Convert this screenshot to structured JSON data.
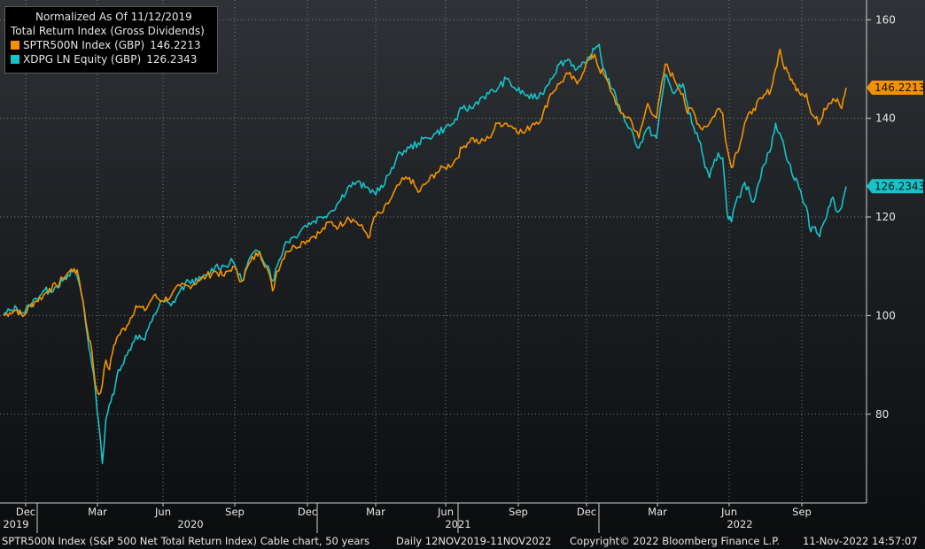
{
  "chart_data": {
    "type": "line",
    "title": "Normalized As Of 11/12/2019",
    "subtitle": "Total Return Index (Gross Dividends)",
    "ylim": [
      62,
      164
    ],
    "y_ticks": [
      80,
      100,
      120,
      140,
      160
    ],
    "grid": true,
    "legend_position": "top-left",
    "x_tick_labels": [
      "Dec",
      "Mar",
      "Jun",
      "Sep",
      "Dec",
      "Mar",
      "Jun",
      "Sep",
      "Dec",
      "Mar",
      "Jun",
      "Sep"
    ],
    "x_year_labels": [
      "2019",
      "2020",
      "2021",
      "2022"
    ],
    "date_range": "12NOV2019-11NOV2022",
    "series": [
      {
        "name": "SPTR500N Index (GBP)",
        "last_value": "146.2213",
        "color": "#f39200",
        "values": [
          [
            0,
            100
          ],
          [
            7,
            100.6
          ],
          [
            15,
            101.2
          ],
          [
            22,
            99.8
          ],
          [
            30,
            102
          ],
          [
            37,
            103
          ],
          [
            45,
            104
          ],
          [
            52,
            105.5
          ],
          [
            60,
            106
          ],
          [
            67,
            107.5
          ],
          [
            75,
            109
          ],
          [
            80,
            109.5
          ],
          [
            85,
            108
          ],
          [
            90,
            103
          ],
          [
            95,
            97
          ],
          [
            100,
            93
          ],
          [
            104,
            86
          ],
          [
            108,
            84
          ],
          [
            112,
            86
          ],
          [
            116,
            91
          ],
          [
            120,
            89
          ],
          [
            125,
            94
          ],
          [
            130,
            96
          ],
          [
            140,
            98
          ],
          [
            150,
            102
          ],
          [
            160,
            101
          ],
          [
            170,
            104
          ],
          [
            180,
            103
          ],
          [
            190,
            104
          ],
          [
            200,
            106
          ],
          [
            210,
            106
          ],
          [
            220,
            107
          ],
          [
            230,
            108
          ],
          [
            240,
            109
          ],
          [
            250,
            108
          ],
          [
            260,
            110
          ],
          [
            270,
            107
          ],
          [
            280,
            111
          ],
          [
            290,
            113
          ],
          [
            300,
            109
          ],
          [
            305,
            105
          ],
          [
            310,
            109
          ],
          [
            320,
            113
          ],
          [
            330,
            114
          ],
          [
            340,
            115
          ],
          [
            350,
            116
          ],
          [
            360,
            117
          ],
          [
            370,
            119
          ],
          [
            380,
            118
          ],
          [
            390,
            120
          ],
          [
            400,
            119
          ],
          [
            410,
            117
          ],
          [
            415,
            116
          ],
          [
            420,
            120
          ],
          [
            430,
            121
          ],
          [
            440,
            124
          ],
          [
            450,
            127
          ],
          [
            460,
            128
          ],
          [
            470,
            125
          ],
          [
            480,
            127
          ],
          [
            490,
            129
          ],
          [
            500,
            130
          ],
          [
            510,
            131
          ],
          [
            520,
            134
          ],
          [
            530,
            136
          ],
          [
            540,
            135
          ],
          [
            550,
            136
          ],
          [
            560,
            139
          ],
          [
            570,
            139
          ],
          [
            580,
            138
          ],
          [
            590,
            137
          ],
          [
            600,
            139
          ],
          [
            610,
            140
          ],
          [
            620,
            145
          ],
          [
            630,
            147
          ],
          [
            640,
            149
          ],
          [
            650,
            147
          ],
          [
            660,
            151
          ],
          [
            670,
            153
          ],
          [
            675,
            150
          ],
          [
            680,
            149
          ],
          [
            690,
            145
          ],
          [
            700,
            141
          ],
          [
            710,
            140
          ],
          [
            720,
            136
          ],
          [
            730,
            143
          ],
          [
            740,
            140
          ],
          [
            750,
            151
          ],
          [
            760,
            148
          ],
          [
            770,
            145
          ],
          [
            775,
            141
          ],
          [
            780,
            142
          ],
          [
            790,
            138
          ],
          [
            800,
            139
          ],
          [
            810,
            142
          ],
          [
            815,
            141
          ],
          [
            820,
            134
          ],
          [
            825,
            130
          ],
          [
            830,
            133
          ],
          [
            835,
            135
          ],
          [
            840,
            139
          ],
          [
            850,
            142
          ],
          [
            860,
            144
          ],
          [
            870,
            146
          ],
          [
            875,
            150
          ],
          [
            880,
            154
          ],
          [
            885,
            150
          ],
          [
            890,
            149
          ],
          [
            895,
            147
          ],
          [
            900,
            146
          ],
          [
            905,
            145
          ],
          [
            910,
            145
          ],
          [
            915,
            141
          ],
          [
            920,
            140
          ],
          [
            925,
            139
          ],
          [
            930,
            142
          ],
          [
            935,
            143
          ],
          [
            940,
            144
          ],
          [
            945,
            144
          ],
          [
            950,
            142
          ],
          [
            955,
            146.2
          ]
        ]
      },
      {
        "name": "XDPG LN Equity (GBP)",
        "last_value": "126.2343",
        "color": "#16c3c9",
        "values": [
          [
            0,
            100
          ],
          [
            7,
            101
          ],
          [
            15,
            101.5
          ],
          [
            22,
            100.5
          ],
          [
            30,
            102
          ],
          [
            37,
            103.5
          ],
          [
            45,
            105
          ],
          [
            52,
            105
          ],
          [
            60,
            106
          ],
          [
            67,
            107
          ],
          [
            75,
            108
          ],
          [
            80,
            109.5
          ],
          [
            85,
            107
          ],
          [
            90,
            103
          ],
          [
            95,
            96
          ],
          [
            100,
            90
          ],
          [
            104,
            85
          ],
          [
            108,
            78
          ],
          [
            112,
            70
          ],
          [
            116,
            79
          ],
          [
            120,
            82
          ],
          [
            125,
            84
          ],
          [
            130,
            89
          ],
          [
            140,
            92
          ],
          [
            150,
            96
          ],
          [
            160,
            95
          ],
          [
            170,
            100
          ],
          [
            180,
            103
          ],
          [
            190,
            102
          ],
          [
            200,
            105
          ],
          [
            210,
            107
          ],
          [
            220,
            107
          ],
          [
            230,
            108
          ],
          [
            240,
            110
          ],
          [
            250,
            110
          ],
          [
            260,
            111
          ],
          [
            270,
            107
          ],
          [
            280,
            112
          ],
          [
            290,
            113
          ],
          [
            300,
            110
          ],
          [
            305,
            107
          ],
          [
            310,
            110
          ],
          [
            320,
            115
          ],
          [
            330,
            116
          ],
          [
            340,
            118
          ],
          [
            350,
            119
          ],
          [
            360,
            120
          ],
          [
            370,
            121
          ],
          [
            380,
            123
          ],
          [
            390,
            126
          ],
          [
            400,
            127
          ],
          [
            410,
            126
          ],
          [
            420,
            125
          ],
          [
            430,
            126
          ],
          [
            440,
            130
          ],
          [
            450,
            133
          ],
          [
            460,
            134
          ],
          [
            470,
            135
          ],
          [
            480,
            136
          ],
          [
            490,
            137
          ],
          [
            500,
            138
          ],
          [
            510,
            139
          ],
          [
            520,
            142
          ],
          [
            530,
            142
          ],
          [
            540,
            144
          ],
          [
            550,
            145
          ],
          [
            560,
            146
          ],
          [
            570,
            148
          ],
          [
            580,
            146
          ],
          [
            590,
            145
          ],
          [
            600,
            144
          ],
          [
            610,
            145
          ],
          [
            620,
            148
          ],
          [
            630,
            151
          ],
          [
            640,
            152
          ],
          [
            650,
            150
          ],
          [
            660,
            151
          ],
          [
            670,
            154
          ],
          [
            675,
            155
          ],
          [
            680,
            150
          ],
          [
            690,
            146
          ],
          [
            700,
            141
          ],
          [
            710,
            138
          ],
          [
            720,
            134
          ],
          [
            730,
            138
          ],
          [
            740,
            136
          ],
          [
            750,
            149
          ],
          [
            760,
            145
          ],
          [
            770,
            147
          ],
          [
            775,
            143
          ],
          [
            780,
            139
          ],
          [
            790,
            135
          ],
          [
            795,
            130
          ],
          [
            800,
            128
          ],
          [
            810,
            133
          ],
          [
            815,
            132
          ],
          [
            820,
            121
          ],
          [
            825,
            119
          ],
          [
            830,
            123
          ],
          [
            835,
            124
          ],
          [
            840,
            127
          ],
          [
            850,
            123
          ],
          [
            860,
            130
          ],
          [
            870,
            134
          ],
          [
            875,
            139
          ],
          [
            880,
            137
          ],
          [
            885,
            134
          ],
          [
            890,
            131
          ],
          [
            895,
            128
          ],
          [
            900,
            127
          ],
          [
            905,
            124
          ],
          [
            910,
            122
          ],
          [
            915,
            117
          ],
          [
            920,
            118
          ],
          [
            925,
            116
          ],
          [
            930,
            119
          ],
          [
            935,
            122
          ],
          [
            940,
            124
          ],
          [
            945,
            121
          ],
          [
            950,
            122
          ],
          [
            955,
            126.2
          ]
        ]
      }
    ]
  },
  "footer": {
    "description": "SPTR500N Index (S&P 500 Net Total Return Index) Cable chart, 50 years",
    "period": "Daily 12NOV2019-11NOV2022",
    "copyright": "Copyright© 2022 Bloomberg Finance L.P.",
    "timestamp": "11-Nov-2022 14:57:07"
  }
}
